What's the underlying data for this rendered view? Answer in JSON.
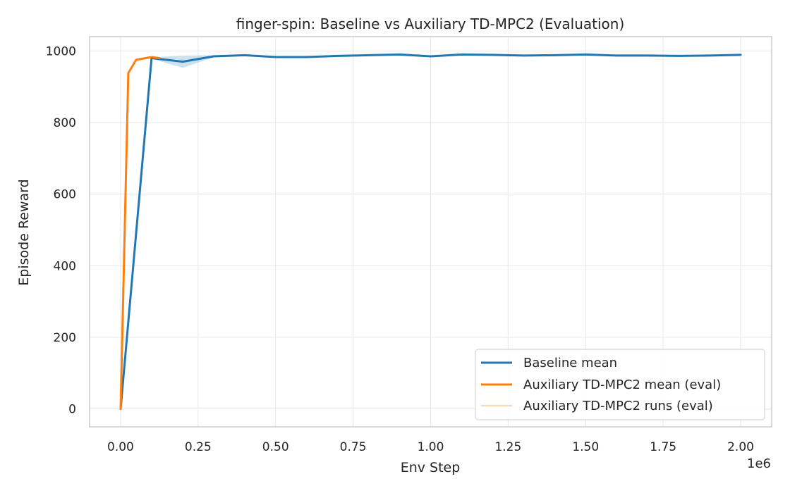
{
  "chart_data": {
    "type": "line",
    "title": "finger-spin: Baseline vs Auxiliary TD-MPC2 (Evaluation)",
    "xlabel": "Env Step",
    "ylabel": "Episode Reward",
    "x_scale_label": "1e6",
    "xlim": [
      -0.1,
      2.1
    ],
    "ylim": [
      -50,
      1040
    ],
    "xticks": [
      0.0,
      0.25,
      0.5,
      0.75,
      1.0,
      1.25,
      1.5,
      1.75,
      2.0
    ],
    "xtick_labels": [
      "0.00",
      "0.25",
      "0.50",
      "0.75",
      "1.00",
      "1.25",
      "1.50",
      "1.75",
      "2.00"
    ],
    "yticks": [
      0,
      200,
      400,
      600,
      800,
      1000
    ],
    "ytick_labels": [
      "0",
      "200",
      "400",
      "600",
      "800",
      "1000"
    ],
    "grid": true,
    "legend_position": "bottom-right",
    "series": [
      {
        "name": "Baseline mean",
        "color": "#1f77b4",
        "x": [
          0.0,
          0.1,
          0.2,
          0.3,
          0.4,
          0.5,
          0.6,
          0.7,
          0.8,
          0.9,
          1.0,
          1.1,
          1.2,
          1.3,
          1.4,
          1.5,
          1.6,
          1.7,
          1.8,
          1.9,
          2.0
        ],
        "y": [
          0,
          980,
          970,
          985,
          988,
          983,
          983,
          986,
          988,
          990,
          985,
          990,
          989,
          987,
          988,
          990,
          987,
          987,
          986,
          987,
          989
        ],
        "band_low": [
          0,
          978,
          953,
          982,
          986,
          981,
          980,
          985,
          987,
          989,
          983,
          989,
          988,
          986,
          987,
          989,
          986,
          984,
          985,
          986,
          988
        ],
        "band_high": [
          0,
          982,
          987,
          988,
          990,
          985,
          986,
          987,
          989,
          991,
          987,
          991,
          990,
          988,
          989,
          991,
          988,
          990,
          987,
          988,
          990
        ]
      },
      {
        "name": "Auxiliary TD-MPC2 mean (eval)",
        "color": "#ff7f0e",
        "x": [
          0.0,
          0.025,
          0.05,
          0.1,
          0.125
        ],
        "y": [
          0,
          938,
          975,
          983,
          980
        ]
      },
      {
        "name": "Auxiliary TD-MPC2 runs (eval)",
        "color": "#ffcc99",
        "x": [
          0.0,
          0.025,
          0.05,
          0.1,
          0.125
        ],
        "y": [
          0,
          938,
          975,
          983,
          980
        ]
      }
    ]
  }
}
